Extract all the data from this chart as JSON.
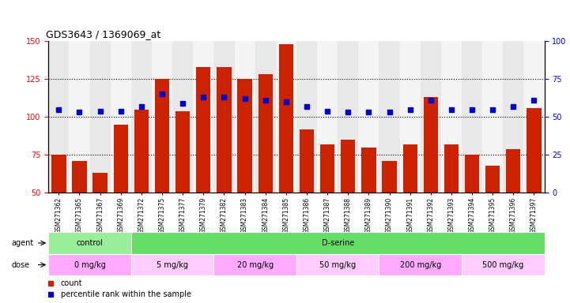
{
  "title": "GDS3643 / 1369069_at",
  "samples": [
    "GSM271362",
    "GSM271365",
    "GSM271367",
    "GSM271369",
    "GSM271372",
    "GSM271375",
    "GSM271377",
    "GSM271379",
    "GSM271382",
    "GSM271383",
    "GSM271384",
    "GSM271385",
    "GSM271386",
    "GSM271387",
    "GSM271388",
    "GSM271389",
    "GSM271390",
    "GSM271391",
    "GSM271392",
    "GSM271393",
    "GSM271394",
    "GSM271395",
    "GSM271396",
    "GSM271397"
  ],
  "counts": [
    75,
    71,
    63,
    95,
    105,
    125,
    104,
    133,
    133,
    125,
    128,
    148,
    92,
    82,
    85,
    80,
    71,
    82,
    113,
    82,
    75,
    68,
    79,
    106
  ],
  "percentile": [
    55,
    53,
    54,
    54,
    57,
    65,
    59,
    63,
    63,
    62,
    61,
    60,
    57,
    54,
    53,
    53,
    53,
    55,
    61,
    55,
    55,
    55,
    57,
    61
  ],
  "bar_color": "#cc2200",
  "dot_color": "#0000cc",
  "ylim_left": [
    50,
    150
  ],
  "ylim_right": [
    0,
    100
  ],
  "yticks_left": [
    50,
    75,
    100,
    125,
    150
  ],
  "yticks_right": [
    0,
    25,
    50,
    75,
    100
  ],
  "hlines": [
    75,
    100,
    125
  ],
  "agent_groups": [
    {
      "label": "control",
      "start": 0,
      "end": 4,
      "color": "#99ee99"
    },
    {
      "label": "D-serine",
      "start": 4,
      "end": 24,
      "color": "#66dd66"
    }
  ],
  "dose_groups": [
    {
      "label": "0 mg/kg",
      "start": 0,
      "end": 4,
      "color": "#ffaaff"
    },
    {
      "label": "5 mg/kg",
      "start": 4,
      "end": 8,
      "color": "#ffccff"
    },
    {
      "label": "20 mg/kg",
      "start": 8,
      "end": 12,
      "color": "#ffaaff"
    },
    {
      "label": "50 mg/kg",
      "start": 12,
      "end": 16,
      "color": "#ffccff"
    },
    {
      "label": "200 mg/kg",
      "start": 16,
      "end": 20,
      "color": "#ffaaff"
    },
    {
      "label": "500 mg/kg",
      "start": 20,
      "end": 24,
      "color": "#ffccff"
    }
  ],
  "agent_label": "agent",
  "dose_label": "dose",
  "bg_colors": [
    "#e8e8e8",
    "#f4f4f4"
  ]
}
